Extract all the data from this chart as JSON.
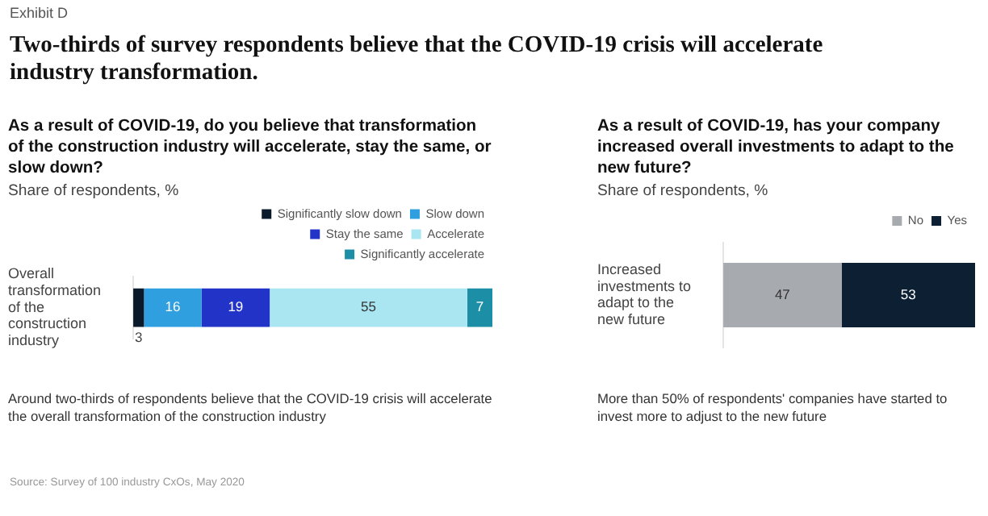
{
  "chart_data": [
    {
      "type": "bar",
      "title": "Two-thirds of survey respondents believe that the COVID-19 crisis will accelerate industry transformation.",
      "subtitle": "As a result of COVID-19, do you believe that transformation of the construction industry will accelerate, stay the same, or slow down?",
      "xlabel": "Share of respondents, %",
      "orientation": "horizontal",
      "stacked": true,
      "categories": [
        "Overall transformation of the construction industry"
      ],
      "series": [
        {
          "name": "Significantly slow down",
          "color": "#0b1a2a",
          "values": [
            3
          ]
        },
        {
          "name": "Slow down",
          "color": "#2f9fe0",
          "values": [
            16
          ]
        },
        {
          "name": "Stay the same",
          "color": "#2233c8",
          "values": [
            19
          ]
        },
        {
          "name": "Accelerate",
          "color": "#a9e6f2",
          "values": [
            55
          ]
        },
        {
          "name": "Significantly accelerate",
          "color": "#1c8fa6",
          "values": [
            7
          ]
        }
      ],
      "xlim": [
        0,
        100
      ],
      "tick_labels": "y",
      "data_labels": true,
      "legend": "top right",
      "annotations": [
        "Exhibit D",
        "Around two-thirds of respondents believe that the COVID-19 crisis will accelerate the overall transformation of the construction industry",
        "Source: Survey of 100 industry CxOs, May 2020"
      ]
    },
    {
      "type": "bar",
      "subtitle": "As a result of COVID-19, has your company increased overall investments to adapt to the new future?",
      "xlabel": "Share of respondents, %",
      "orientation": "horizontal",
      "stacked": true,
      "categories": [
        "Increased investments to adapt to the new future"
      ],
      "series": [
        {
          "name": "No",
          "color": "#a7aaae",
          "values": [
            47
          ]
        },
        {
          "name": "Yes",
          "color": "#0c1f33",
          "values": [
            53
          ]
        }
      ],
      "xlim": [
        0,
        100
      ],
      "tick_labels": "y",
      "data_labels": true,
      "legend": "top right",
      "annotations": [
        "More than 50% of respondents' companies have started to invest more to adjust to the new future"
      ]
    }
  ]
}
